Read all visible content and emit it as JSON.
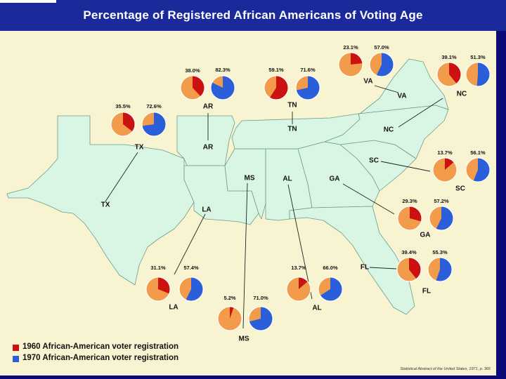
{
  "title": "Percentage of Registered African Americans of Voting Age",
  "colors": {
    "y1960": "#cc1111",
    "y1970": "#2b5fd9",
    "rest": "#f29b4b",
    "land": "#d9f5e4",
    "panel": "#f8f4d2"
  },
  "states": [
    {
      "id": "AR",
      "name": "AR",
      "pct_1960": 38.0,
      "pct_1960_label": "38.0%",
      "pct_1970": 82.3,
      "pct_1970_label": "82.3%"
    },
    {
      "id": "TN",
      "name": "TN",
      "pct_1960": 59.1,
      "pct_1960_label": "59.1%",
      "pct_1970": 71.6,
      "pct_1970_label": "71.6%"
    },
    {
      "id": "VA",
      "name": "VA",
      "pct_1960": 23.1,
      "pct_1960_label": "23.1%",
      "pct_1970": 57.0,
      "pct_1970_label": "57.0%"
    },
    {
      "id": "NC",
      "name": "NC",
      "pct_1960": 39.1,
      "pct_1960_label": "39.1%",
      "pct_1970": 51.3,
      "pct_1970_label": "51.3%"
    },
    {
      "id": "TX",
      "name": "TX",
      "pct_1960": 35.5,
      "pct_1960_label": "35.5%",
      "pct_1970": 72.6,
      "pct_1970_label": "72.6%"
    },
    {
      "id": "SC",
      "name": "SC",
      "pct_1960": 13.7,
      "pct_1960_label": "13.7%",
      "pct_1970": 56.1,
      "pct_1970_label": "56.1%"
    },
    {
      "id": "GA",
      "name": "GA",
      "pct_1960": 29.3,
      "pct_1960_label": "29.3%",
      "pct_1970": 57.2,
      "pct_1970_label": "57.2%"
    },
    {
      "id": "FL",
      "name": "FL",
      "pct_1960": 39.4,
      "pct_1960_label": "39.4%",
      "pct_1970": 55.3,
      "pct_1970_label": "55.3%"
    },
    {
      "id": "LA",
      "name": "LA",
      "pct_1960": 31.1,
      "pct_1960_label": "31.1%",
      "pct_1970": 57.4,
      "pct_1970_label": "57.4%"
    },
    {
      "id": "MS",
      "name": "MS",
      "pct_1960": 5.2,
      "pct_1960_label": "5.2%",
      "pct_1970": 71.0,
      "pct_1970_label": "71.0%"
    },
    {
      "id": "AL",
      "name": "AL",
      "pct_1960": 13.7,
      "pct_1960_label": "13.7%",
      "pct_1970": 66.0,
      "pct_1970_label": "66.0%"
    }
  ],
  "legend": {
    "y1960": "1960 African-American voter registration",
    "y1970": "1970 African-American voter registration"
  },
  "source": "Statistical Abstract of the United States, 1971, p. 365",
  "chart_data": {
    "type": "pie",
    "title": "Percentage of Registered African Americans of Voting Age",
    "categories": [
      "AR",
      "TN",
      "VA",
      "NC",
      "TX",
      "SC",
      "GA",
      "FL",
      "LA",
      "MS",
      "AL"
    ],
    "series": [
      {
        "name": "1960 African-American voter registration",
        "values": [
          38.0,
          59.1,
          23.1,
          39.1,
          35.5,
          13.7,
          29.3,
          39.4,
          31.1,
          5.2,
          13.7
        ]
      },
      {
        "name": "1970 African-American voter registration",
        "values": [
          82.3,
          71.6,
          57.0,
          51.3,
          72.6,
          56.1,
          57.2,
          55.3,
          57.4,
          71.0,
          66.0
        ]
      }
    ],
    "unit": "%"
  }
}
